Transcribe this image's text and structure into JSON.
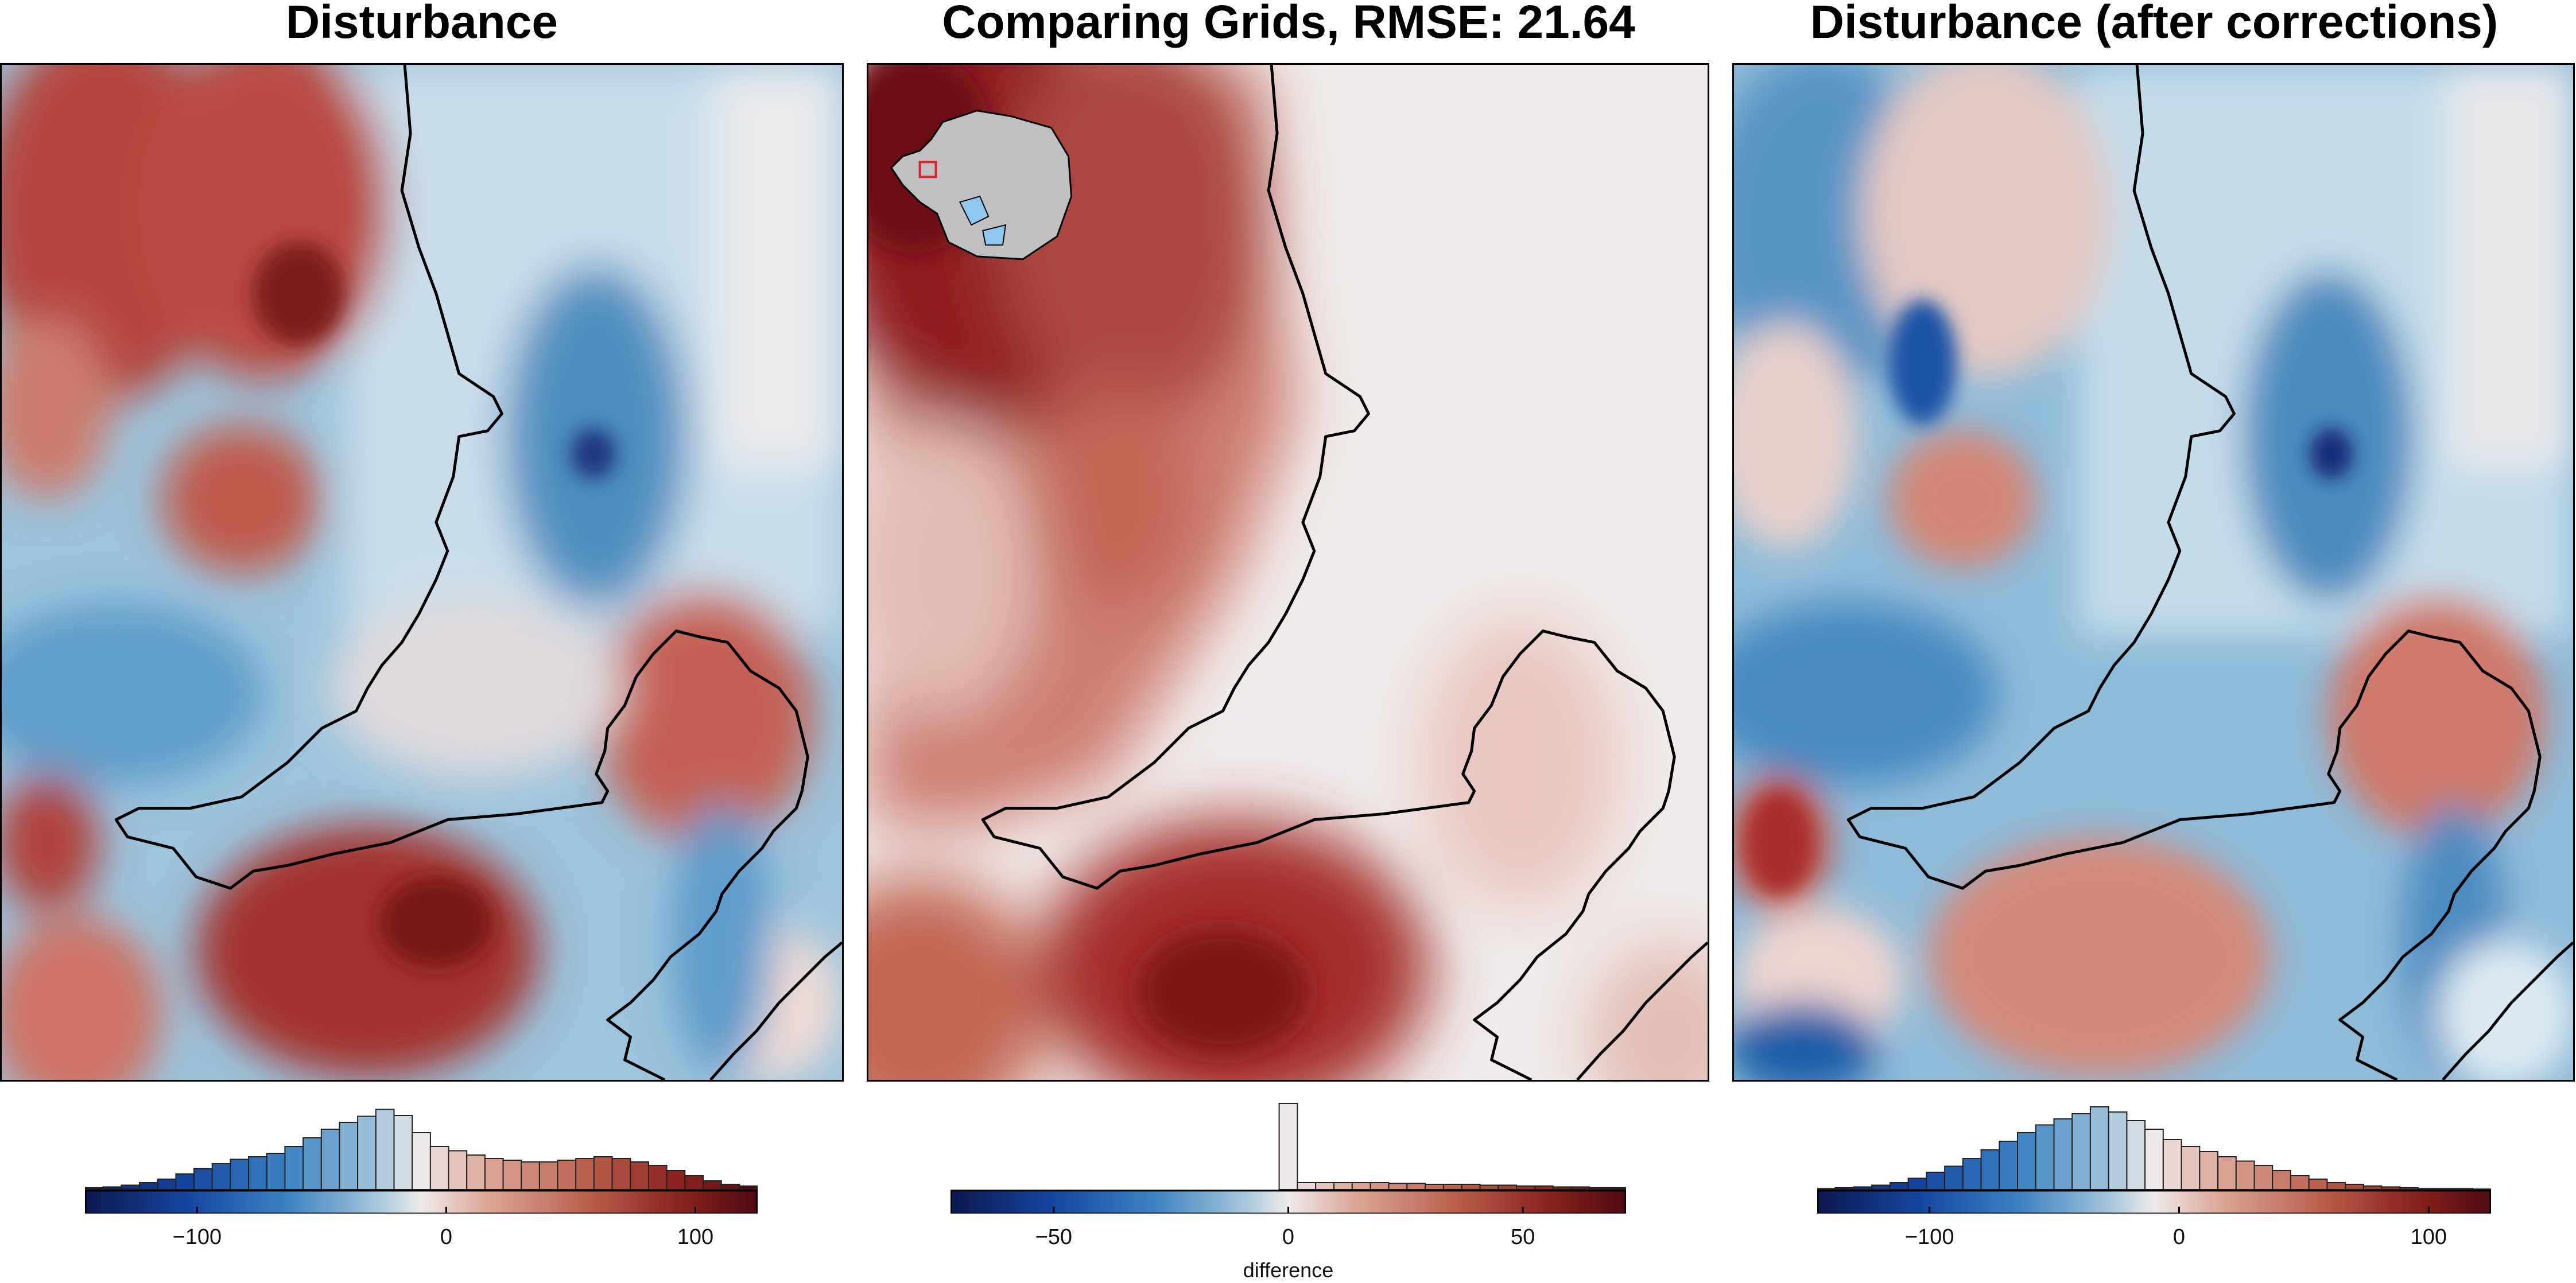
{
  "figure": {
    "panels": [
      {
        "id": "disturbance",
        "title": "Disturbance",
        "colorbar": {
          "cmap": "vik",
          "range": [
            -145,
            125
          ],
          "ticks": [
            {
              "label": "−100",
              "value": -100
            },
            {
              "label": "0",
              "value": 0
            },
            {
              "label": "100",
              "value": 100
            }
          ],
          "label": "",
          "histogram": [
            0.02,
            0.03,
            0.05,
            0.08,
            0.12,
            0.18,
            0.24,
            0.3,
            0.35,
            0.38,
            0.42,
            0.5,
            0.6,
            0.7,
            0.78,
            0.85,
            0.93,
            0.86,
            0.66,
            0.5,
            0.45,
            0.4,
            0.36,
            0.34,
            0.32,
            0.32,
            0.34,
            0.36,
            0.38,
            0.36,
            0.32,
            0.28,
            0.22,
            0.16,
            0.1,
            0.06,
            0.04
          ]
        }
      },
      {
        "id": "comparison",
        "title": "Comparing Grids, RMSE: 21.64",
        "colorbar": {
          "cmap": "vik",
          "range": [
            -72,
            72
          ],
          "ticks": [
            {
              "label": "−50",
              "value": -50
            },
            {
              "label": "0",
              "value": 0
            },
            {
              "label": "50",
              "value": 50
            }
          ],
          "label": "difference",
          "histogram": [
            0,
            0,
            0,
            0,
            0,
            0,
            0,
            0,
            0,
            0,
            0,
            0,
            0,
            0,
            0,
            0,
            0,
            0,
            1.0,
            0.08,
            0.08,
            0.08,
            0.08,
            0.08,
            0.07,
            0.07,
            0.06,
            0.06,
            0.06,
            0.05,
            0.05,
            0.04,
            0.04,
            0.03,
            0.03,
            0.02,
            0.02
          ]
        },
        "inset": {
          "name": "Antarctica locator map",
          "land_color": "#c0c0c0",
          "ice_shelf_color": "#8ec8ee",
          "highlight_color": "#e0202a"
        }
      },
      {
        "id": "disturbance-corrected",
        "title": "Disturbance (after corrections)",
        "colorbar": {
          "cmap": "vik",
          "range": [
            -145,
            125
          ],
          "ticks": [
            {
              "label": "−100",
              "value": -100
            },
            {
              "label": "0",
              "value": 0
            },
            {
              "label": "100",
              "value": 100
            }
          ],
          "label": "",
          "histogram": [
            0.01,
            0.02,
            0.03,
            0.05,
            0.08,
            0.13,
            0.2,
            0.27,
            0.36,
            0.46,
            0.56,
            0.66,
            0.75,
            0.82,
            0.88,
            0.96,
            0.9,
            0.8,
            0.7,
            0.58,
            0.5,
            0.44,
            0.38,
            0.33,
            0.28,
            0.22,
            0.16,
            0.12,
            0.08,
            0.06,
            0.04,
            0.03,
            0.02,
            0.01,
            0.01,
            0.01,
            0.005
          ]
        }
      }
    ],
    "colors": {
      "coastline": "#000000",
      "frame": "#000000",
      "deep_red": "#6b0d14",
      "deep_blue": "#0c2a6e",
      "neutral": "#f2efee"
    }
  }
}
